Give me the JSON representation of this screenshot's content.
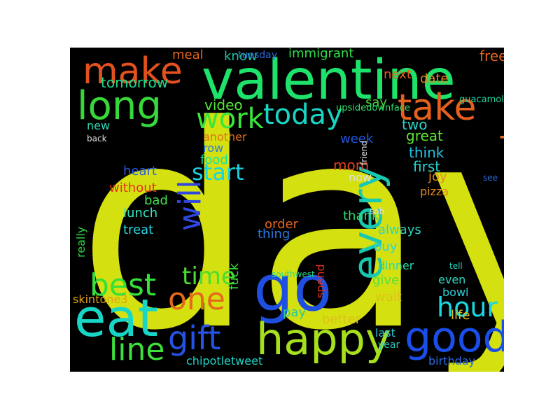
{
  "background": "#000000",
  "page_background": "#ffffff",
  "words": [
    {
      "text": "day",
      "color": "#d4e010"
    },
    {
      "text": "valentine",
      "color": "#1ee36a"
    },
    {
      "text": "go",
      "color": "#1e4fe0"
    },
    {
      "text": "eat",
      "color": "#18d6c6"
    },
    {
      "text": "make",
      "color": "#e3511e"
    },
    {
      "text": "long",
      "color": "#36d83a"
    },
    {
      "text": "take",
      "color": "#e5601c"
    },
    {
      "text": "happy",
      "color": "#a6e01c"
    },
    {
      "text": "every",
      "color": "#17c9b0"
    },
    {
      "text": "good",
      "color": "#1a4ee8"
    },
    {
      "text": "today",
      "color": "#17d6c4"
    },
    {
      "text": "work",
      "color": "#3ae63a"
    },
    {
      "text": "best",
      "color": "#36e03a"
    },
    {
      "text": "one",
      "color": "#e56918"
    },
    {
      "text": "gift",
      "color": "#2453e6"
    },
    {
      "text": "line",
      "color": "#3ee03a"
    },
    {
      "text": "time",
      "color": "#4ade30"
    },
    {
      "text": "will",
      "color": "#2f47e0"
    },
    {
      "text": "card",
      "color": "#e36a1e"
    },
    {
      "text": "hour",
      "color": "#17d8e0"
    },
    {
      "text": "start",
      "color": "#17d4e0"
    },
    {
      "text": "tomorrow",
      "color": "#19dc8c"
    },
    {
      "text": "immigrant",
      "color": "#2fe04a"
    },
    {
      "text": "free",
      "color": "#e5661a"
    },
    {
      "text": "next",
      "color": "#e85d1a"
    },
    {
      "text": "video",
      "color": "#52e834"
    },
    {
      "text": "know",
      "color": "#1ec8a8"
    },
    {
      "text": "meal",
      "color": "#e6641b"
    },
    {
      "text": "date",
      "color": "#e38a1a"
    },
    {
      "text": "tuesday",
      "color": "#2a6be0"
    },
    {
      "text": "say",
      "color": "#47d83a"
    },
    {
      "text": "two",
      "color": "#2ad6ca"
    },
    {
      "text": "guacamole",
      "color": "#1ed6a2"
    },
    {
      "text": "upsidedownface",
      "color": "#2ee06b"
    },
    {
      "text": "great",
      "color": "#5ee534"
    },
    {
      "text": "think",
      "color": "#1ec4e6"
    },
    {
      "text": "first",
      "color": "#1ed6d6"
    },
    {
      "text": "week",
      "color": "#2256e0"
    },
    {
      "text": "mom",
      "color": "#e3431b"
    },
    {
      "text": "new",
      "color": "#2ed6b6"
    },
    {
      "text": "back",
      "color": "#e0e0e0"
    },
    {
      "text": "another",
      "color": "#e46e1c"
    },
    {
      "text": "row",
      "color": "#2a7de3"
    },
    {
      "text": "food",
      "color": "#17e3a0"
    },
    {
      "text": "heart",
      "color": "#2a5de8"
    },
    {
      "text": "without",
      "color": "#e5301c"
    },
    {
      "text": "bad",
      "color": "#42e34a"
    },
    {
      "text": "lunch",
      "color": "#30e8c0"
    },
    {
      "text": "treat",
      "color": "#26d6e0"
    },
    {
      "text": "now",
      "color": "#e0e0e0"
    },
    {
      "text": "joy",
      "color": "#e38a1a"
    },
    {
      "text": "pizza",
      "color": "#e38a1a"
    },
    {
      "text": "thank",
      "color": "#30dc70"
    },
    {
      "text": "order",
      "color": "#e5641b"
    },
    {
      "text": "thing",
      "color": "#2a78e0"
    },
    {
      "text": "always",
      "color": "#2ad6c0"
    },
    {
      "text": "buy",
      "color": "#30d6d0"
    },
    {
      "text": "dinner",
      "color": "#2ad8a8"
    },
    {
      "text": "give",
      "color": "#54e03a"
    },
    {
      "text": "even",
      "color": "#2ed6c0"
    },
    {
      "text": "bowl",
      "color": "#30cbd6"
    },
    {
      "text": "fuck",
      "color": "#36e03a"
    },
    {
      "text": "pay",
      "color": "#2aca98"
    },
    {
      "text": "wait",
      "color": "#e0c01a"
    },
    {
      "text": "skintone3",
      "color": "#e0a21a"
    },
    {
      "text": "really",
      "color": "#30d640"
    },
    {
      "text": "better",
      "color": "#e0c01a"
    },
    {
      "text": "life",
      "color": "#e0c01a"
    },
    {
      "text": "spend",
      "color": "#e5301c"
    },
    {
      "text": "last",
      "color": "#2ac8d6"
    },
    {
      "text": "year",
      "color": "#2ac8c0"
    },
    {
      "text": "birthday",
      "color": "#2a6ce6"
    },
    {
      "text": "chipotletweet",
      "color": "#1ed6c6"
    },
    {
      "text": "tell",
      "color": "#2ad6c0"
    },
    {
      "text": "southwest",
      "color": "#2ad68c"
    },
    {
      "text": "see",
      "color": "#2a6ce0"
    },
    {
      "text": "sob",
      "color": "#e0e0e0"
    },
    {
      "text": "friend",
      "color": "#e0e0e0"
    }
  ]
}
